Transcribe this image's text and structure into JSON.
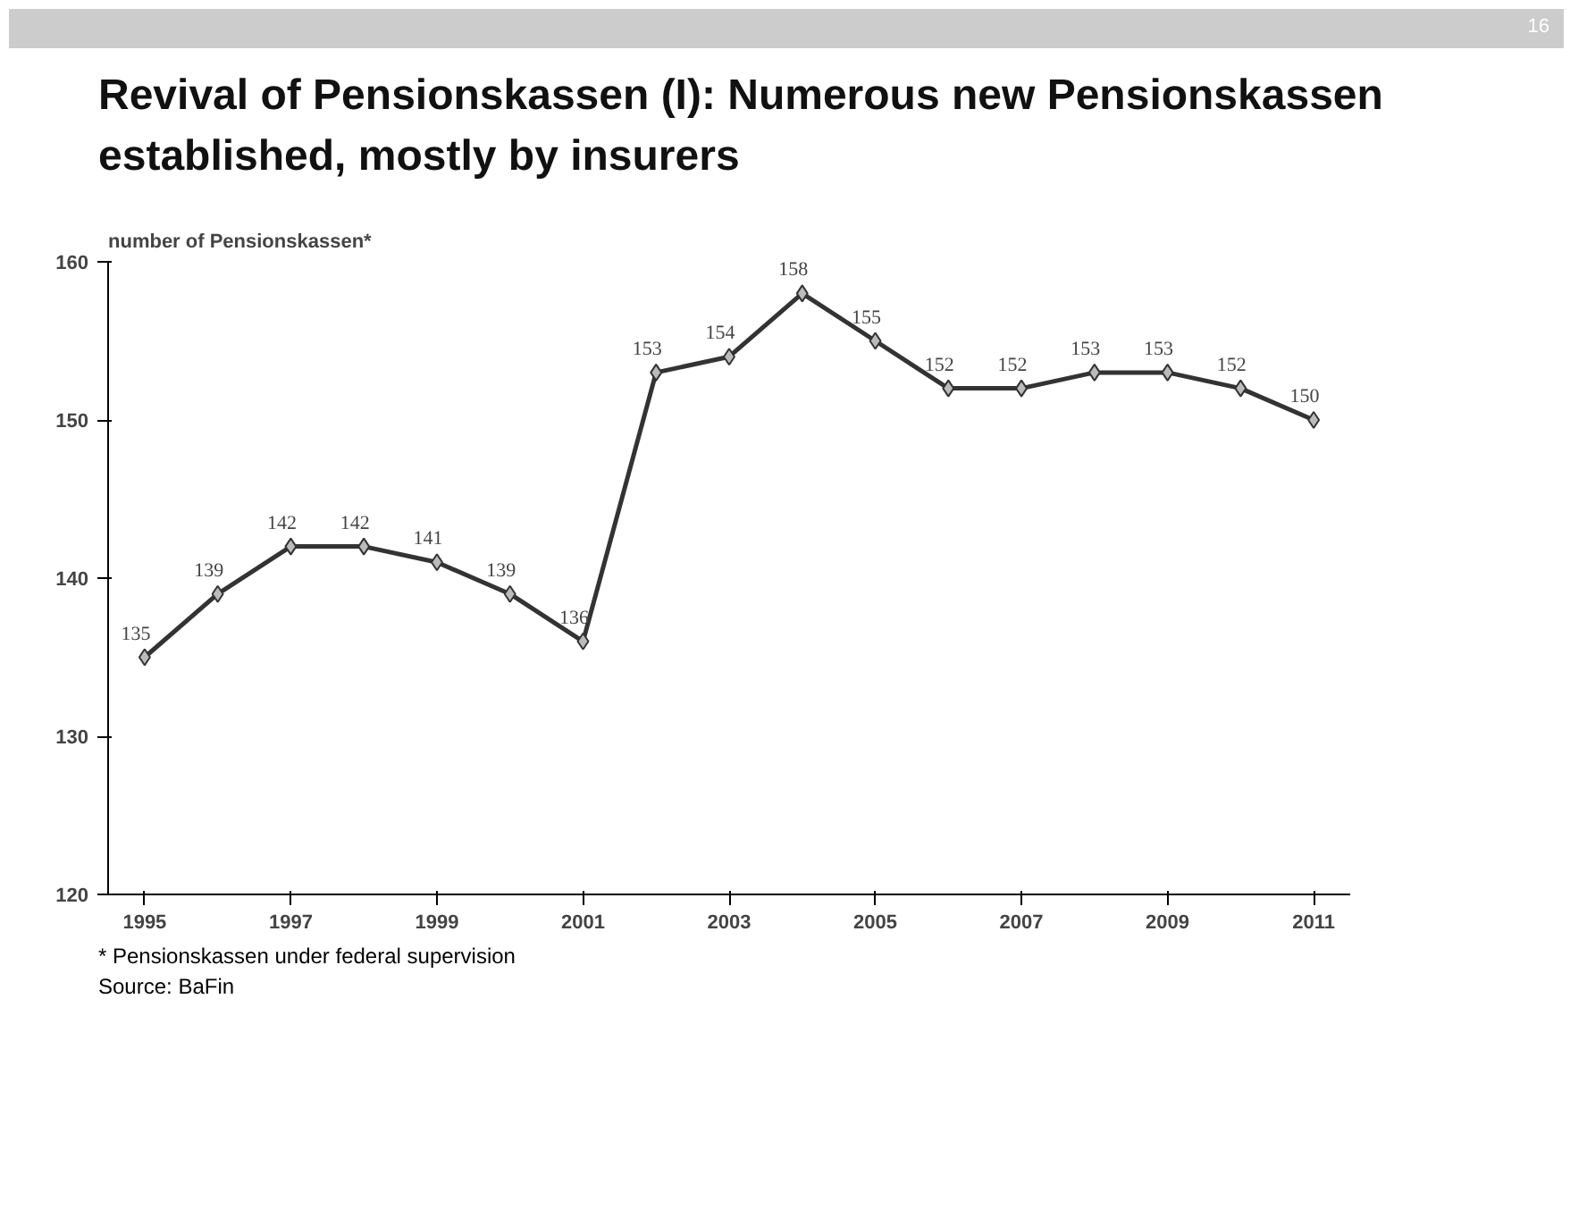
{
  "chart_data": {
    "type": "line",
    "title": "Revival of Pensionskassen (I): Numerous new Pensionskassen established, mostly by insurers",
    "ylabel": "number of Pensionskassen*",
    "x": [
      1995,
      1996,
      1997,
      1998,
      1999,
      2000,
      2001,
      2002,
      2003,
      2004,
      2005,
      2006,
      2007,
      2008,
      2009,
      2010,
      2011
    ],
    "series": [
      {
        "color": "#333333",
        "values": [
          135,
          139,
          142,
          142,
          141,
          139,
          136,
          153,
          154,
          158,
          155,
          152,
          152,
          153,
          153,
          152,
          150
        ]
      }
    ],
    "xlim": [
      1994.5,
      2011.5
    ],
    "xticks": [
      1995,
      1997,
      1999,
      2001,
      2003,
      2005,
      2007,
      2009,
      2011
    ],
    "ylim": [
      120,
      160
    ],
    "yticks": [
      120,
      130,
      140,
      150,
      160
    ],
    "grid": false,
    "marker": "diamond",
    "line_style": "solid",
    "data_labels": true,
    "annotations": [
      "16",
      "* Pensionskassen under federal supervision",
      "Source: BaFin"
    ]
  }
}
